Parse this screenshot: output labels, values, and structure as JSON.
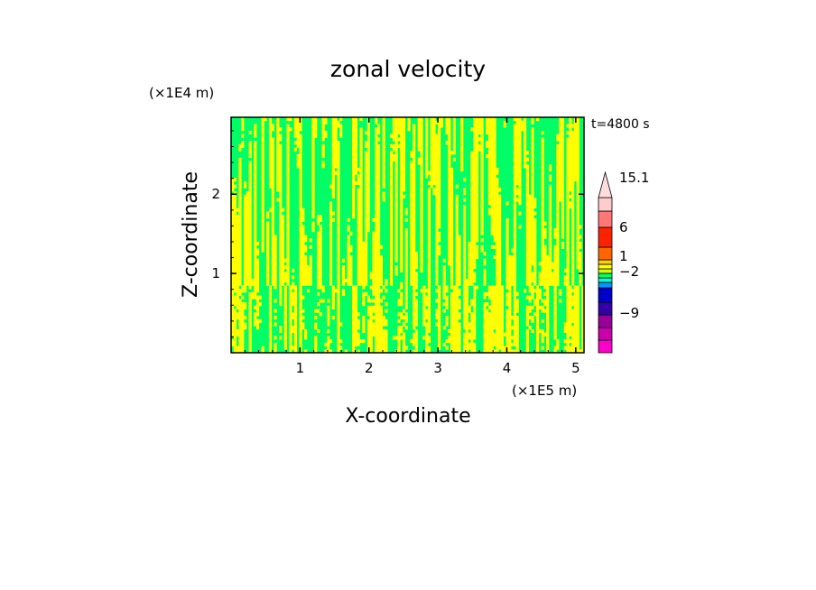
{
  "chart_data": {
    "type": "heatmap",
    "title": "zonal velocity",
    "xlabel": "X-coordinate",
    "ylabel": "Z-coordinate",
    "x_unit": "(×1E5 m)",
    "y_unit": "(×1E4 m)",
    "time_label": "t=4800 s",
    "xlim": [
      0,
      5.12
    ],
    "ylim": [
      0,
      2.97
    ],
    "x_ticks": [
      1,
      2,
      3,
      4,
      5
    ],
    "y_ticks": [
      1,
      2
    ],
    "field_colors": {
      "positive": "#ffff00",
      "negative": "#00ff66"
    },
    "colorbar": {
      "colors": [
        "#ff00cc",
        "#cc00aa",
        "#990099",
        "#3300aa",
        "#0000cc",
        "#0099ff",
        "#00ffcc",
        "#00ff66",
        "#ccff00",
        "#ffff00",
        "#ffcc00",
        "#ff6600",
        "#ff2200",
        "#ff7777",
        "#ffcccc"
      ],
      "max_arrow_color": "#ffdddd",
      "labels": [
        "15.1",
        "6",
        "1",
        "−2",
        "−9"
      ]
    }
  }
}
